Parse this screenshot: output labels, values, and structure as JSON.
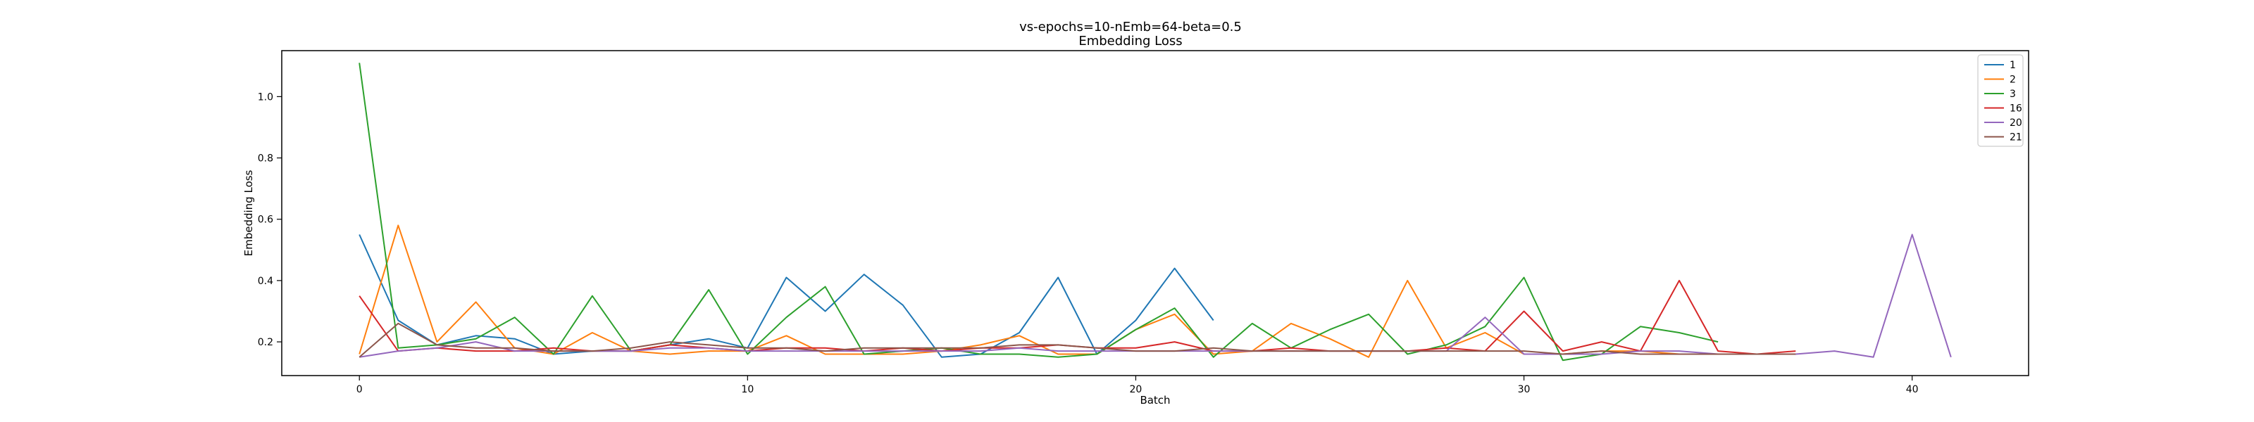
{
  "chart_data": {
    "type": "line",
    "title": "vs-epochs=10-nEmb=64-beta=0.5",
    "subtitle": "Embedding Loss",
    "xlabel": "Batch",
    "ylabel": "Embedding Loss",
    "xlim": [
      -2,
      43
    ],
    "ylim": [
      0.09,
      1.15
    ],
    "xticks": [
      0,
      10,
      20,
      30,
      40
    ],
    "yticks": [
      0.2,
      0.4,
      0.6,
      0.8,
      1.0
    ],
    "xtick_labels": [
      "0",
      "10",
      "20",
      "30",
      "40"
    ],
    "ytick_labels": [
      "0.2",
      "0.4",
      "0.6",
      "0.8",
      "1.0"
    ],
    "grid": false,
    "legend_position": "top-right",
    "series": [
      {
        "name": "1",
        "color": "#1f77b4",
        "x": [
          0,
          1,
          2,
          3,
          4,
          5,
          6,
          7,
          8,
          9,
          10,
          11,
          12,
          13,
          14,
          15,
          16,
          17,
          18,
          19,
          20,
          21,
          22
        ],
        "values": [
          0.55,
          0.27,
          0.19,
          0.22,
          0.21,
          0.16,
          0.17,
          0.17,
          0.19,
          0.21,
          0.18,
          0.41,
          0.3,
          0.42,
          0.32,
          0.15,
          0.16,
          0.23,
          0.41,
          0.16,
          0.27,
          0.44,
          0.27
        ]
      },
      {
        "name": "2",
        "color": "#ff7f0e",
        "x": [
          0,
          1,
          2,
          3,
          4,
          5,
          6,
          7,
          8,
          9,
          10,
          11,
          12,
          13,
          14,
          15,
          16,
          17,
          18,
          19,
          20,
          21,
          22,
          23,
          24,
          25,
          26,
          27,
          28,
          29,
          30,
          31,
          32,
          33,
          34,
          35,
          36,
          37
        ],
        "values": [
          0.16,
          0.58,
          0.2,
          0.33,
          0.18,
          0.16,
          0.23,
          0.17,
          0.16,
          0.17,
          0.17,
          0.22,
          0.16,
          0.16,
          0.16,
          0.17,
          0.19,
          0.22,
          0.16,
          0.16,
          0.24,
          0.29,
          0.16,
          0.17,
          0.26,
          0.21,
          0.15,
          0.4,
          0.18,
          0.23,
          0.16,
          0.16,
          0.17,
          0.17,
          0.16,
          0.16,
          0.16,
          0.16
        ]
      },
      {
        "name": "3",
        "color": "#2ca02c",
        "x": [
          0,
          1,
          2,
          3,
          4,
          5,
          6,
          7,
          8,
          9,
          10,
          11,
          12,
          13,
          14,
          15,
          16,
          17,
          18,
          19,
          20,
          21,
          22,
          23,
          24,
          25,
          26,
          27,
          28,
          29,
          30,
          31,
          32,
          33,
          34,
          35
        ],
        "values": [
          1.11,
          0.18,
          0.19,
          0.21,
          0.28,
          0.16,
          0.35,
          0.17,
          0.19,
          0.37,
          0.16,
          0.28,
          0.38,
          0.16,
          0.17,
          0.18,
          0.16,
          0.16,
          0.15,
          0.16,
          0.24,
          0.31,
          0.15,
          0.26,
          0.18,
          0.24,
          0.29,
          0.16,
          0.19,
          0.25,
          0.41,
          0.14,
          0.16,
          0.25,
          0.23,
          0.2
        ]
      },
      {
        "name": "16",
        "color": "#d62728",
        "x": [
          0,
          1,
          2,
          3,
          4,
          5,
          6,
          7,
          8,
          9,
          10,
          11,
          12,
          13,
          14,
          15,
          16,
          17,
          18,
          19,
          20,
          21,
          22,
          23,
          24,
          25,
          26,
          27,
          28,
          29,
          30,
          31,
          32,
          33,
          34,
          35,
          36,
          37
        ],
        "values": [
          0.35,
          0.17,
          0.18,
          0.17,
          0.17,
          0.18,
          0.17,
          0.17,
          0.19,
          0.18,
          0.17,
          0.18,
          0.18,
          0.17,
          0.18,
          0.17,
          0.18,
          0.18,
          0.19,
          0.18,
          0.18,
          0.2,
          0.17,
          0.17,
          0.18,
          0.17,
          0.17,
          0.17,
          0.18,
          0.17,
          0.3,
          0.17,
          0.2,
          0.17,
          0.4,
          0.17,
          0.16,
          0.17
        ]
      },
      {
        "name": "20",
        "color": "#9467bd",
        "x": [
          0,
          1,
          2,
          3,
          4,
          5,
          6,
          7,
          8,
          9,
          10,
          11,
          12,
          13,
          14,
          15,
          16,
          17,
          18,
          19,
          20,
          21,
          22,
          23,
          24,
          25,
          26,
          27,
          28,
          29,
          30,
          31,
          32,
          33,
          34,
          35,
          36,
          37,
          38,
          39,
          40,
          41
        ],
        "values": [
          0.15,
          0.17,
          0.18,
          0.2,
          0.17,
          0.17,
          0.17,
          0.17,
          0.18,
          0.18,
          0.17,
          0.17,
          0.17,
          0.17,
          0.17,
          0.17,
          0.17,
          0.18,
          0.17,
          0.17,
          0.17,
          0.17,
          0.17,
          0.17,
          0.17,
          0.17,
          0.17,
          0.17,
          0.17,
          0.28,
          0.16,
          0.16,
          0.16,
          0.17,
          0.17,
          0.16,
          0.16,
          0.16,
          0.17,
          0.15,
          0.55,
          0.15
        ]
      },
      {
        "name": "21",
        "color": "#8c564b",
        "x": [
          0,
          1,
          2,
          3,
          4,
          5,
          6,
          7,
          8,
          9,
          10,
          11,
          12,
          13,
          14,
          15,
          16,
          17,
          18,
          19,
          20,
          21,
          22,
          23,
          24,
          25,
          26,
          27,
          28,
          29,
          30,
          31,
          32,
          33,
          34,
          35,
          36,
          37
        ],
        "values": [
          0.15,
          0.26,
          0.19,
          0.18,
          0.18,
          0.17,
          0.17,
          0.18,
          0.2,
          0.19,
          0.18,
          0.18,
          0.17,
          0.18,
          0.18,
          0.18,
          0.18,
          0.19,
          0.19,
          0.18,
          0.17,
          0.17,
          0.18,
          0.17,
          0.17,
          0.17,
          0.17,
          0.17,
          0.17,
          0.17,
          0.17,
          0.16,
          0.17,
          0.16,
          0.16,
          0.16,
          0.16,
          0.16
        ]
      }
    ]
  }
}
